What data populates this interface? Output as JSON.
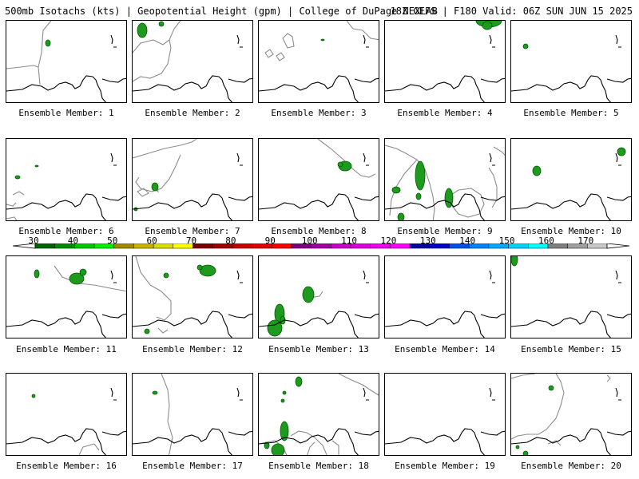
{
  "header": {
    "left": "500mb Isotachs (kts) | Geopotential Height (gpm) | College of DuPage NEXLAB",
    "right": "18Z GEFS | F180 Valid: 06Z SUN JUN 15 2025"
  },
  "members": [
    {
      "label": "Ensemble Member: 1"
    },
    {
      "label": "Ensemble Member: 2"
    },
    {
      "label": "Ensemble Member: 3"
    },
    {
      "label": "Ensemble Member: 4"
    },
    {
      "label": "Ensemble Member: 5"
    },
    {
      "label": "Ensemble Member: 6"
    },
    {
      "label": "Ensemble Member: 7"
    },
    {
      "label": "Ensemble Member: 8"
    },
    {
      "label": "Ensemble Member: 9"
    },
    {
      "label": "Ensemble Member: 10"
    },
    {
      "label": "Ensemble Member: 11"
    },
    {
      "label": "Ensemble Member: 12"
    },
    {
      "label": "Ensemble Member: 13"
    },
    {
      "label": "Ensemble Member: 14"
    },
    {
      "label": "Ensemble Member: 15"
    },
    {
      "label": "Ensemble Member: 16"
    },
    {
      "label": "Ensemble Member: 17"
    },
    {
      "label": "Ensemble Member: 18"
    },
    {
      "label": "Ensemble Member: 19"
    },
    {
      "label": "Ensemble Member: 20"
    }
  ],
  "legend": {
    "ticks": [
      "30",
      "40",
      "50",
      "60",
      "70",
      "80",
      "90",
      "100",
      "110",
      "120",
      "130",
      "140",
      "150",
      "160",
      "170"
    ],
    "colors": [
      "#006400",
      "#008c00",
      "#00c800",
      "#00f000",
      "#a08c00",
      "#c8b400",
      "#dcdc00",
      "#ffff00",
      "#780000",
      "#a00000",
      "#c80000",
      "#e10000",
      "#ff0000",
      "#7d007d",
      "#a000a0",
      "#c800c8",
      "#dc00dc",
      "#f000f0",
      "#ff00ff",
      "#0000a0",
      "#0000c8",
      "#0050f0",
      "#0082ff",
      "#00aaff",
      "#00d2ff",
      "#00ffff",
      "#808080",
      "#a0a0a0",
      "#c8c8c8"
    ]
  }
}
